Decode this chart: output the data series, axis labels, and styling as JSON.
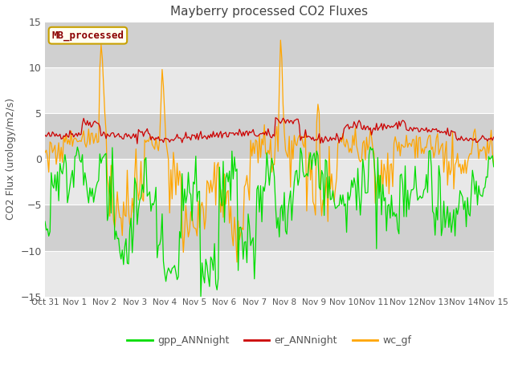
{
  "title": "Mayberry processed CO2 Fluxes",
  "ylabel": "CO2 Flux (urology/m2/s)",
  "ylim": [
    -15,
    15
  ],
  "yticks": [
    -15,
    -10,
    -5,
    0,
    5,
    10,
    15
  ],
  "background_color": "#ffffff",
  "plot_bg_color": "#dcdcdc",
  "band_light": "#e8e8e8",
  "band_dark": "#d0d0d0",
  "legend_label": "MB_processed",
  "legend_label_color": "#8b0000",
  "legend_label_bg": "#fffff0",
  "legend_label_border": "#c8a000",
  "series": {
    "gpp_ANNnight": {
      "color": "#00dd00",
      "label": "gpp_ANNnight"
    },
    "er_ANNnight": {
      "color": "#cc0000",
      "label": "er_ANNnight"
    },
    "wc_gf": {
      "color": "#ffa500",
      "label": "wc_gf"
    }
  },
  "date_labels": [
    "Oct 31",
    "Nov 1",
    "Nov 2",
    "Nov 3",
    "Nov 4",
    "Nov 5",
    "Nov 6",
    "Nov 7",
    "Nov 8",
    "Nov 9",
    "Nov 10",
    "Nov 11",
    "Nov 12",
    "Nov 13",
    "Nov 14",
    "Nov 15"
  ],
  "date_ticks": [
    0,
    24,
    48,
    72,
    96,
    120,
    144,
    168,
    192,
    216,
    240,
    264,
    288,
    312,
    336,
    360
  ]
}
